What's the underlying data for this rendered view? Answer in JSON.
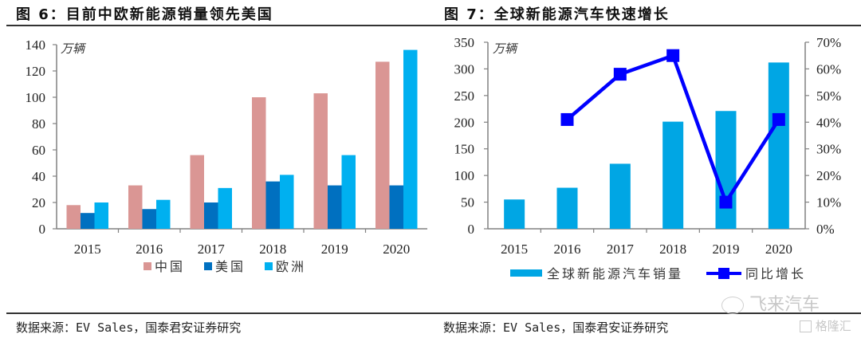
{
  "figures": [
    {
      "title": "图 6：目前中欧新能源销量领先美国",
      "source": "数据来源：EV Sales，国泰君安证券研究"
    },
    {
      "title": "图 7：全球新能源汽车快速增长",
      "source": "数据来源：EV Sales，国泰君安证券研究"
    }
  ],
  "watermark": {
    "wechat_name": "飞来汽车",
    "brand": "格隆汇"
  },
  "colors": {
    "china": "#DA9694",
    "usa": "#0070C0",
    "europe": "#00B0F0",
    "global_bar": "#00A6E4",
    "yoy_line": "#0000FF",
    "axis": "#808080"
  },
  "chart_data": [
    {
      "type": "bar",
      "title": "目前中欧新能源销量领先美国",
      "unit_label": "万辆",
      "categories": [
        "2015",
        "2016",
        "2017",
        "2018",
        "2019",
        "2020"
      ],
      "series": [
        {
          "name": "中国",
          "values": [
            18,
            33,
            56,
            100,
            103,
            127
          ]
        },
        {
          "name": "美国",
          "values": [
            12,
            15,
            20,
            36,
            33,
            33
          ]
        },
        {
          "name": "欧洲",
          "values": [
            20,
            22,
            31,
            41,
            56,
            136
          ]
        }
      ],
      "ylim": [
        0,
        140
      ],
      "yticks": [
        0,
        20,
        40,
        60,
        80,
        100,
        120,
        140
      ],
      "xlabel": "",
      "ylabel": "万辆",
      "grid": false,
      "legend": "bottom"
    },
    {
      "type": "bar+line",
      "title": "全球新能源汽车快速增长",
      "unit_label": "万辆",
      "categories": [
        "2015",
        "2016",
        "2017",
        "2018",
        "2019",
        "2020"
      ],
      "series": [
        {
          "name": "全球新能源汽车销量",
          "type": "bar",
          "axis": "left",
          "values": [
            55,
            77,
            122,
            201,
            221,
            312
          ]
        },
        {
          "name": "同比增长",
          "type": "line",
          "axis": "right",
          "values": [
            null,
            0.41,
            0.58,
            0.65,
            0.1,
            0.41
          ]
        }
      ],
      "ylim": [
        0,
        350
      ],
      "yticks": [
        0,
        50,
        100,
        150,
        200,
        250,
        300,
        350
      ],
      "y2lim": [
        0,
        0.7
      ],
      "y2ticks": [
        "0%",
        "10%",
        "20%",
        "30%",
        "40%",
        "50%",
        "60%",
        "70%"
      ],
      "xlabel": "",
      "ylabel": "万辆",
      "grid": false,
      "legend": "bottom"
    }
  ]
}
